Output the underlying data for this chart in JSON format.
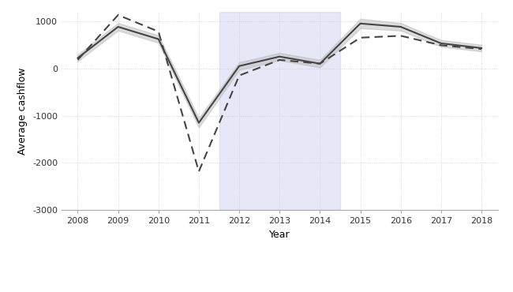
{
  "years": [
    2008,
    2009,
    2010,
    2011,
    2012,
    2013,
    2014,
    2015,
    2016,
    2017,
    2018
  ],
  "low_exposed": [
    220,
    880,
    620,
    -1150,
    50,
    250,
    100,
    950,
    880,
    530,
    430
  ],
  "low_exposed_upper": [
    290,
    960,
    700,
    -1050,
    130,
    330,
    180,
    1050,
    960,
    600,
    500
  ],
  "low_exposed_lower": [
    150,
    800,
    540,
    -1250,
    -30,
    170,
    20,
    850,
    800,
    460,
    360
  ],
  "high_exposed": [
    180,
    1130,
    780,
    -2180,
    -150,
    180,
    100,
    650,
    690,
    490,
    410
  ],
  "shade_start": 2011.5,
  "shade_end": 2014.5,
  "shade_color": "#c8ccee",
  "shade_alpha": 0.45,
  "low_color": "#444444",
  "high_color": "#444444",
  "ci_color": "#bbbbbb",
  "ci_alpha": 0.5,
  "ylabel": "Average cashflow",
  "xlabel": "Year",
  "ylim": [
    -3000,
    1200
  ],
  "yticks": [
    -3000,
    -2000,
    -1000,
    0,
    1000
  ],
  "xticks": [
    2008,
    2009,
    2010,
    2011,
    2012,
    2013,
    2014,
    2015,
    2016,
    2017,
    2018
  ],
  "bg_color": "#ffffff",
  "grid_color": "#cccccc"
}
